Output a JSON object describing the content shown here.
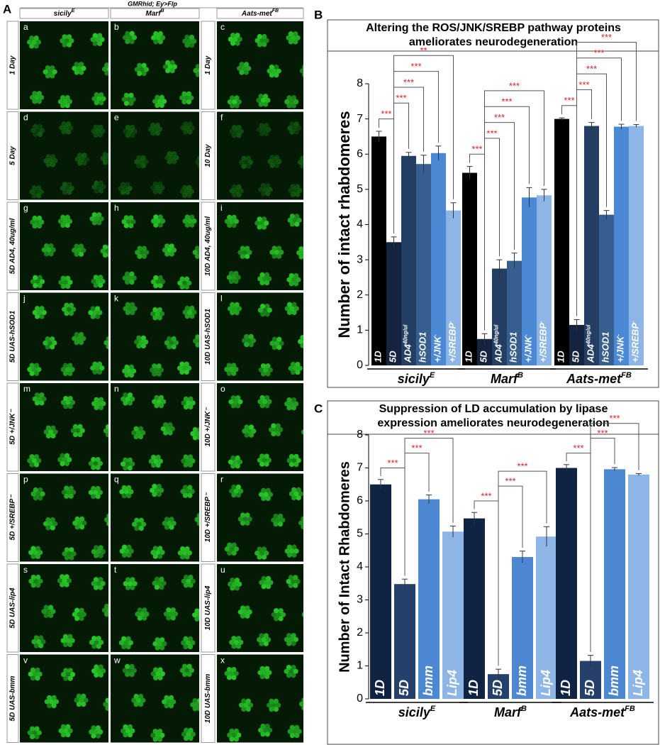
{
  "panel_a": {
    "letter": "A",
    "genotype": "GMRhid; Ey>Flp",
    "columns": [
      {
        "text": "sicily",
        "sup": "E"
      },
      {
        "text": "Marf",
        "sup": "B"
      },
      {
        "text": "Aats-met",
        "sup": "FB"
      }
    ],
    "left_labels": [
      "1 Day",
      "5 Day",
      "5D AD4, 40ug/ml",
      "5D UAS-hSOD1",
      "5D +/JNK⁻",
      "5D +/SREBP⁻",
      "5D UAS-lip4",
      "5D UAS-bmm"
    ],
    "right_labels": [
      "1 Day",
      "10 Day",
      "10D AD4, 40ug/ml",
      "10D UAS-hSOD1",
      "10D +/JNK⁻",
      "10D +/SREBP⁻",
      "10D UAS-lip4",
      "10D UAS-bmm"
    ],
    "panels": [
      "a",
      "b",
      "c",
      "d",
      "e",
      "f",
      "g",
      "h",
      "i",
      "j",
      "k",
      "l",
      "m",
      "n",
      "o",
      "p",
      "q",
      "r",
      "s",
      "t",
      "u",
      "v",
      "w",
      "x"
    ]
  },
  "chart_data": [
    {
      "type": "bar",
      "letter": "B",
      "title": [
        "Altering the ROS/JNK/SREBP pathway proteins",
        "ameliorates neurodegeneration"
      ],
      "ylabel": "Number of intact rhabdomeres",
      "ylim": [
        0,
        8
      ],
      "yticks": [
        0,
        1,
        2,
        3,
        4,
        5,
        6,
        7,
        8
      ],
      "categories": [
        {
          "text": "1D"
        },
        {
          "text": "5D"
        },
        {
          "text": "AD4",
          "sup": "40ng/ul"
        },
        {
          "text": "hSOD1"
        },
        {
          "text": "+/JNK",
          "sup": "-"
        },
        {
          "text": "+/SREBP",
          "sup": "-"
        }
      ],
      "colors": [
        "#000000",
        "#14233f",
        "#233d63",
        "#365e8e",
        "#4c89d5",
        "#8db6e7"
      ],
      "groups": [
        {
          "name": {
            "text": "sicily",
            "sup": "E"
          },
          "values": [
            6.5,
            3.5,
            5.95,
            5.72,
            6.03,
            4.4
          ],
          "errors": [
            0.15,
            0.15,
            0.1,
            0.25,
            0.2,
            0.22
          ]
        },
        {
          "name": {
            "text": "Marf",
            "sup": "B"
          },
          "values": [
            5.47,
            0.75,
            2.75,
            2.97,
            4.77,
            4.83
          ],
          "errors": [
            0.18,
            0.15,
            0.25,
            0.22,
            0.28,
            0.17
          ]
        },
        {
          "name": {
            "text": "Aats-met",
            "sup": "FB"
          },
          "values": [
            7.0,
            1.15,
            6.8,
            4.28,
            6.78,
            6.8
          ],
          "errors": [
            0.03,
            0.15,
            0.1,
            0.12,
            0.07,
            0.04
          ]
        }
      ],
      "significance": [
        {
          "group": 0,
          "bars": [
            0,
            1
          ],
          "label": "***"
        },
        {
          "group": 0,
          "bars": [
            1,
            2
          ],
          "label": "***"
        },
        {
          "group": 0,
          "bars": [
            1,
            3
          ],
          "label": "***"
        },
        {
          "group": 0,
          "bars": [
            1,
            4
          ],
          "label": "***"
        },
        {
          "group": 0,
          "bars": [
            1,
            5
          ],
          "label": "**"
        },
        {
          "group": 1,
          "bars": [
            0,
            1
          ],
          "label": "***"
        },
        {
          "group": 1,
          "bars": [
            1,
            2
          ],
          "label": "***"
        },
        {
          "group": 1,
          "bars": [
            1,
            3
          ],
          "label": "***"
        },
        {
          "group": 1,
          "bars": [
            1,
            4
          ],
          "label": "***"
        },
        {
          "group": 1,
          "bars": [
            1,
            5
          ],
          "label": "***"
        },
        {
          "group": 2,
          "bars": [
            0,
            1
          ],
          "label": "***"
        },
        {
          "group": 2,
          "bars": [
            1,
            2
          ],
          "label": "***"
        },
        {
          "group": 2,
          "bars": [
            1,
            3
          ],
          "label": "***"
        },
        {
          "group": 2,
          "bars": [
            1,
            4
          ],
          "label": "***"
        },
        {
          "group": 2,
          "bars": [
            1,
            5
          ],
          "label": "***"
        }
      ]
    },
    {
      "type": "bar",
      "letter": "C",
      "title": [
        "Suppression of LD accumulation by lipase",
        "expression ameliorates neurodegeneration"
      ],
      "ylabel": "Number of Intact Rhabdomeres",
      "ylim": [
        0,
        8
      ],
      "yticks": [
        0,
        1,
        2,
        3,
        4,
        5,
        6,
        7,
        8
      ],
      "categories": [
        {
          "text": "1D"
        },
        {
          "text": "5D"
        },
        {
          "text": "bmm"
        },
        {
          "text": "Lip4"
        }
      ],
      "colors": [
        "#102342",
        "#25416b",
        "#4e87d1",
        "#8db5e5"
      ],
      "groups": [
        {
          "name": {
            "text": "sicily",
            "sup": "E"
          },
          "values": [
            6.5,
            3.48,
            6.05,
            5.07
          ],
          "errors": [
            0.15,
            0.15,
            0.13,
            0.17
          ]
        },
        {
          "name": {
            "text": "Marf",
            "sup": "B"
          },
          "values": [
            5.47,
            0.75,
            4.3,
            4.92
          ],
          "errors": [
            0.18,
            0.15,
            0.18,
            0.3
          ]
        },
        {
          "name": {
            "text": "Aats-met",
            "sup": "FB"
          },
          "values": [
            7.0,
            1.15,
            6.96,
            6.8
          ],
          "errors": [
            0.1,
            0.17,
            0.05,
            0.03
          ]
        }
      ],
      "significance": [
        {
          "group": 0,
          "bars": [
            0,
            1
          ],
          "label": "***"
        },
        {
          "group": 0,
          "bars": [
            1,
            2
          ],
          "label": "***"
        },
        {
          "group": 0,
          "bars": [
            1,
            3
          ],
          "label": "***"
        },
        {
          "group": 1,
          "bars": [
            0,
            1
          ],
          "label": "***"
        },
        {
          "group": 1,
          "bars": [
            1,
            2
          ],
          "label": "***"
        },
        {
          "group": 1,
          "bars": [
            1,
            3
          ],
          "label": "***"
        },
        {
          "group": 2,
          "bars": [
            0,
            1
          ],
          "label": "***"
        },
        {
          "group": 2,
          "bars": [
            1,
            2
          ],
          "label": "***"
        },
        {
          "group": 2,
          "bars": [
            1,
            3
          ],
          "label": "***"
        }
      ]
    }
  ]
}
